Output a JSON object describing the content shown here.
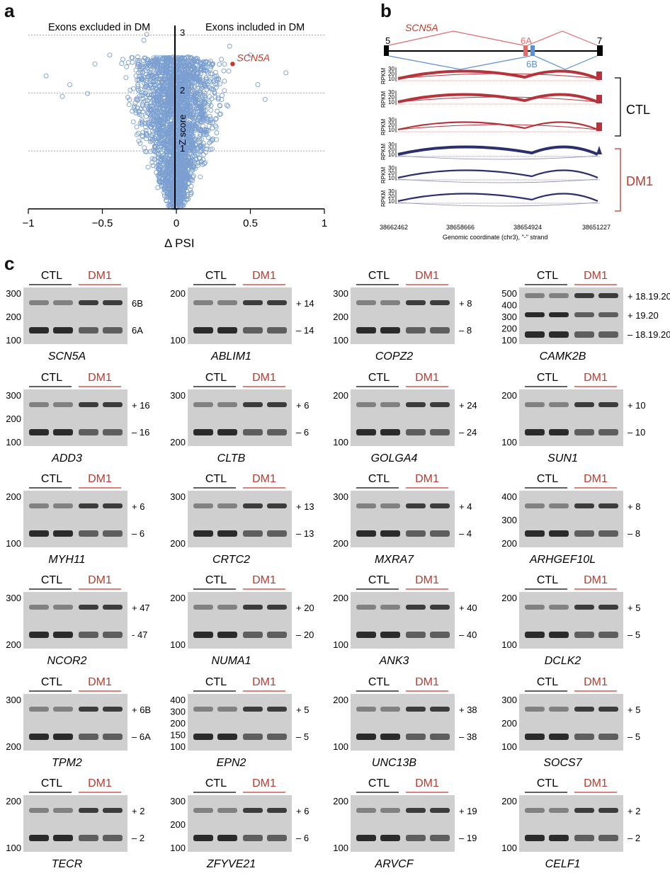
{
  "panel_a": {
    "label": "a",
    "left_text": "Exons excluded in DM",
    "right_text": "Exons included in DM",
    "highlight_gene": "SCN5A",
    "zlabel": "Z score",
    "xlabel": "Δ PSI",
    "xticks": [
      "−1",
      "−0.5",
      "0",
      "0.5",
      "1"
    ],
    "yticks": [
      "1",
      "2",
      "3"
    ],
    "colors": {
      "point": "#7b9fd0",
      "highlight": "#c0392b"
    }
  },
  "chart_data": {
    "type": "scatter",
    "title": "",
    "xlabel": "Δ PSI",
    "ylabel": "Z score",
    "xlim": [
      -1,
      1
    ],
    "ylim": [
      0,
      3.1
    ],
    "highlight_point": {
      "label": "SCN5A",
      "x": 0.38,
      "y": 2.45
    },
    "note": "volcano-shaped cloud of several thousand exon events centred at ΔPSI≈0, widest near Z≈1.6–2.2"
  },
  "panel_b": {
    "label": "b",
    "gene": "SCN5A",
    "exons": [
      "5",
      "6A",
      "6B",
      "7"
    ],
    "rpkm_label": "RPKM",
    "rpkm_ticks": [
      "30",
      "20",
      "10"
    ],
    "groups": [
      "CTL",
      "DM1"
    ],
    "coords": [
      "38662462",
      "38658666",
      "38654924",
      "38651227"
    ],
    "xlabel": "Genomic coordinate (chr3), \"-\" strand",
    "colors": {
      "ctl": "#b5343b",
      "dm1": "#2b2f6e",
      "ctl_label": "#111111",
      "dm1_label": "#c0392b"
    }
  },
  "panel_c": {
    "label": "c",
    "ctl": "CTL",
    "dm1": "DM1",
    "gels": [
      {
        "gene": "SCN5A",
        "ladder": [
          "300",
          "200",
          "100"
        ],
        "bands": [
          "6B",
          "6A"
        ]
      },
      {
        "gene": "ABLIM1",
        "ladder": [
          "200",
          "100"
        ],
        "bands": [
          "+ 14",
          "– 14"
        ]
      },
      {
        "gene": "COPZ2",
        "ladder": [
          "300",
          "200",
          "100"
        ],
        "bands": [
          "+ 8",
          "– 8"
        ]
      },
      {
        "gene": "CAMK2B",
        "ladder": [
          "500",
          "400",
          "300",
          "200",
          "100"
        ],
        "bands": [
          "+ 18.19.20",
          "+ 19.20",
          "– 18.19.20"
        ]
      },
      {
        "gene": "ADD3",
        "ladder": [
          "300",
          "200",
          "100"
        ],
        "bands": [
          "+ 16",
          "– 16"
        ]
      },
      {
        "gene": "CLTB",
        "ladder": [
          "300",
          "200"
        ],
        "bands": [
          "+ 6",
          "– 6"
        ]
      },
      {
        "gene": "GOLGA4",
        "ladder": [
          "200",
          "100"
        ],
        "bands": [
          "+ 24",
          "– 24"
        ]
      },
      {
        "gene": "SUN1",
        "ladder": [
          "200",
          "100"
        ],
        "bands": [
          "+ 10",
          "– 10"
        ]
      },
      {
        "gene": "MYH11",
        "ladder": [
          "200",
          "100"
        ],
        "bands": [
          "+ 6",
          "– 6"
        ]
      },
      {
        "gene": "CRTC2",
        "ladder": [
          "300",
          "200"
        ],
        "bands": [
          "+ 13",
          "– 13"
        ]
      },
      {
        "gene": "MXRA7",
        "ladder": [
          "300",
          "200"
        ],
        "bands": [
          "+ 4",
          "– 4"
        ]
      },
      {
        "gene": "ARHGEF10L",
        "ladder": [
          "400",
          "300",
          "200"
        ],
        "bands": [
          "+ 8",
          "– 8"
        ]
      },
      {
        "gene": "NCOR2",
        "ladder": [
          "300",
          "200"
        ],
        "bands": [
          "+ 47",
          "- 47"
        ]
      },
      {
        "gene": "NUMA1",
        "ladder": [
          "200",
          "100"
        ],
        "bands": [
          "+ 20",
          "– 20"
        ]
      },
      {
        "gene": "ANK3",
        "ladder": [
          "200",
          "100"
        ],
        "bands": [
          "+ 40",
          "– 40"
        ]
      },
      {
        "gene": "DCLK2",
        "ladder": [
          "200",
          "100"
        ],
        "bands": [
          "+ 5",
          "– 5"
        ]
      },
      {
        "gene": "TPM2",
        "ladder": [
          "300",
          "200"
        ],
        "bands": [
          "+ 6B",
          "– 6A"
        ]
      },
      {
        "gene": "EPN2",
        "ladder": [
          "400",
          "300",
          "200",
          "150",
          "100"
        ],
        "bands": [
          "+ 5",
          "– 5"
        ]
      },
      {
        "gene": "UNC13B",
        "ladder": [
          "200",
          "100"
        ],
        "bands": [
          "+ 38",
          "– 38"
        ]
      },
      {
        "gene": "SOCS7",
        "ladder": [
          "300",
          "200",
          "100"
        ],
        "bands": [
          "+ 5",
          "– 5"
        ]
      },
      {
        "gene": "TECR",
        "ladder": [
          "200",
          "100"
        ],
        "bands": [
          "+ 2",
          "– 2"
        ]
      },
      {
        "gene": "ZFYVE21",
        "ladder": [
          "300",
          "200",
          "100"
        ],
        "bands": [
          "+ 6",
          "– 6"
        ]
      },
      {
        "gene": "ARVCF",
        "ladder": [
          "200",
          "100"
        ],
        "bands": [
          "+ 19",
          "– 19"
        ]
      },
      {
        "gene": "CELF1",
        "ladder": [
          "200",
          "100"
        ],
        "bands": [
          "+ 2",
          "– 2"
        ]
      }
    ]
  }
}
